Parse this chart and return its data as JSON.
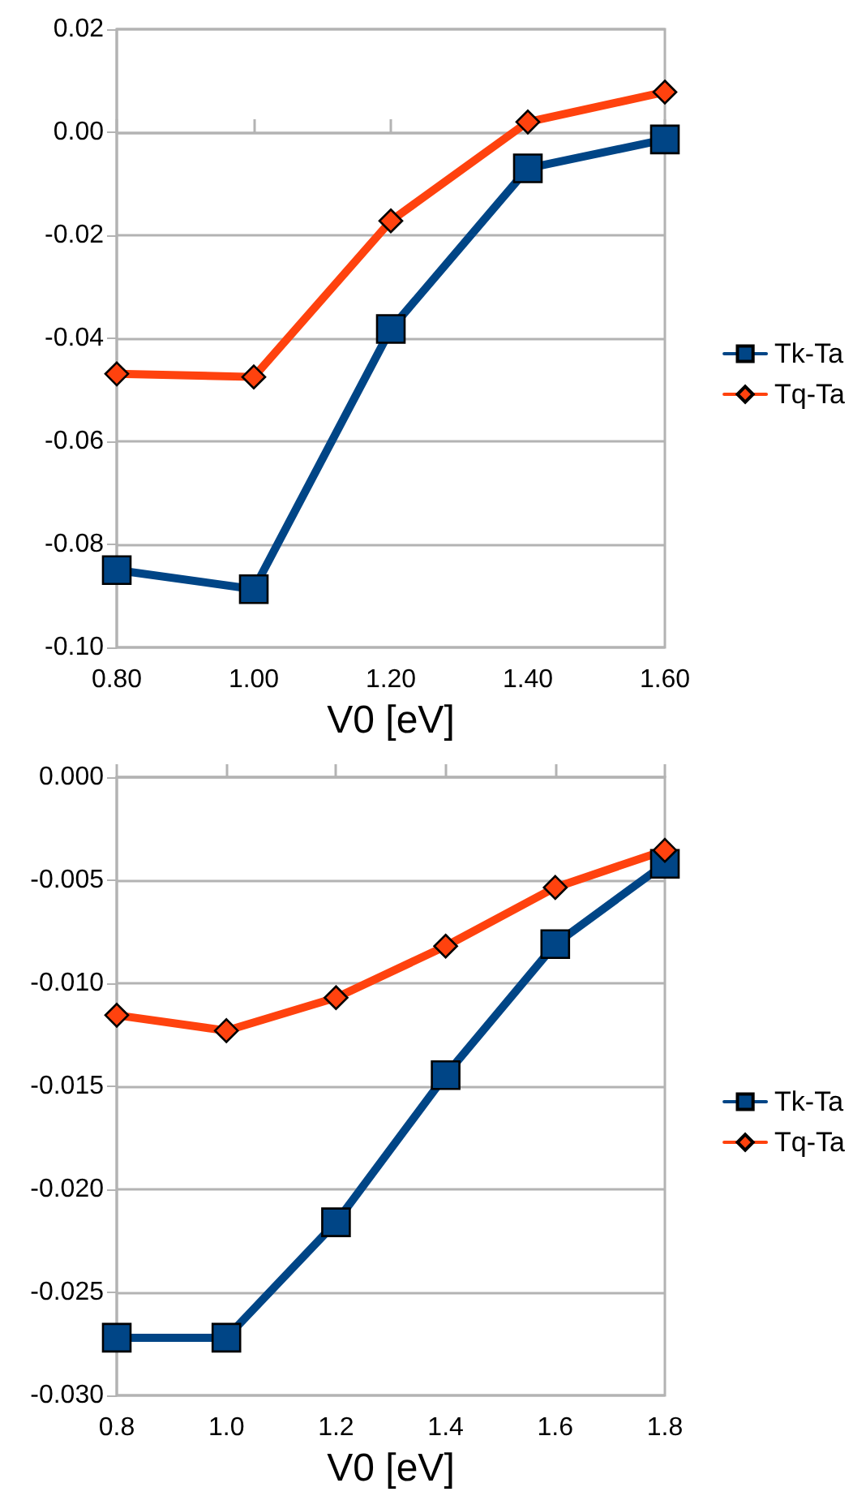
{
  "chart_data": [
    {
      "type": "line",
      "xlabel": "V0 [eV]",
      "categories": [
        "0.80",
        "1.00",
        "1.20",
        "1.40",
        "1.60"
      ],
      "series": [
        {
          "name": "Tk-Ta",
          "color": "#004586",
          "marker": "square",
          "values": [
            -0.085,
            -0.0887,
            -0.0382,
            -0.007,
            -0.0014
          ]
        },
        {
          "name": "Tq-Ta",
          "color": "#ff420e",
          "marker": "diamond",
          "values": [
            -0.0469,
            -0.0475,
            -0.0172,
            0.002,
            0.0078
          ]
        }
      ],
      "ylim": [
        -0.1,
        0.02
      ],
      "yticks": [
        {
          "value": -0.1,
          "label": "-0.10"
        },
        {
          "value": -0.08,
          "label": "-0.08"
        },
        {
          "value": -0.06,
          "label": "-0.06"
        },
        {
          "value": -0.04,
          "label": "-0.04"
        },
        {
          "value": -0.02,
          "label": "-0.02"
        },
        {
          "value": 0,
          "label": "0.00"
        },
        {
          "value": 0.02,
          "label": "0.02"
        }
      ],
      "grid": "y",
      "legend": "right",
      "line_style": "solid"
    },
    {
      "type": "line",
      "xlabel": "V0 [eV]",
      "categories": [
        "0.8",
        "1.0",
        "1.2",
        "1.4",
        "1.6",
        "1.8"
      ],
      "series": [
        {
          "name": "Tk-Ta",
          "color": "#004586",
          "marker": "square",
          "values": [
            -0.0272,
            -0.0272,
            -0.0216,
            -0.01446,
            -0.0081,
            -0.0042
          ]
        },
        {
          "name": "Tq-Ta",
          "color": "#ff420e",
          "marker": "diamond",
          "values": [
            -0.01155,
            -0.0123,
            -0.0107,
            -0.0082,
            -0.00535,
            -0.00355
          ]
        }
      ],
      "ylim": [
        -0.03,
        0
      ],
      "yticks": [
        {
          "value": -0.03,
          "label": "-0.030"
        },
        {
          "value": -0.025,
          "label": "-0.025"
        },
        {
          "value": -0.02,
          "label": "-0.020"
        },
        {
          "value": -0.015,
          "label": "-0.015"
        },
        {
          "value": -0.01,
          "label": "-0.010"
        },
        {
          "value": -0.005,
          "label": "-0.005"
        },
        {
          "value": 0,
          "label": "0.000"
        }
      ],
      "grid": "y",
      "legend": "right",
      "line_style": "solid"
    }
  ]
}
